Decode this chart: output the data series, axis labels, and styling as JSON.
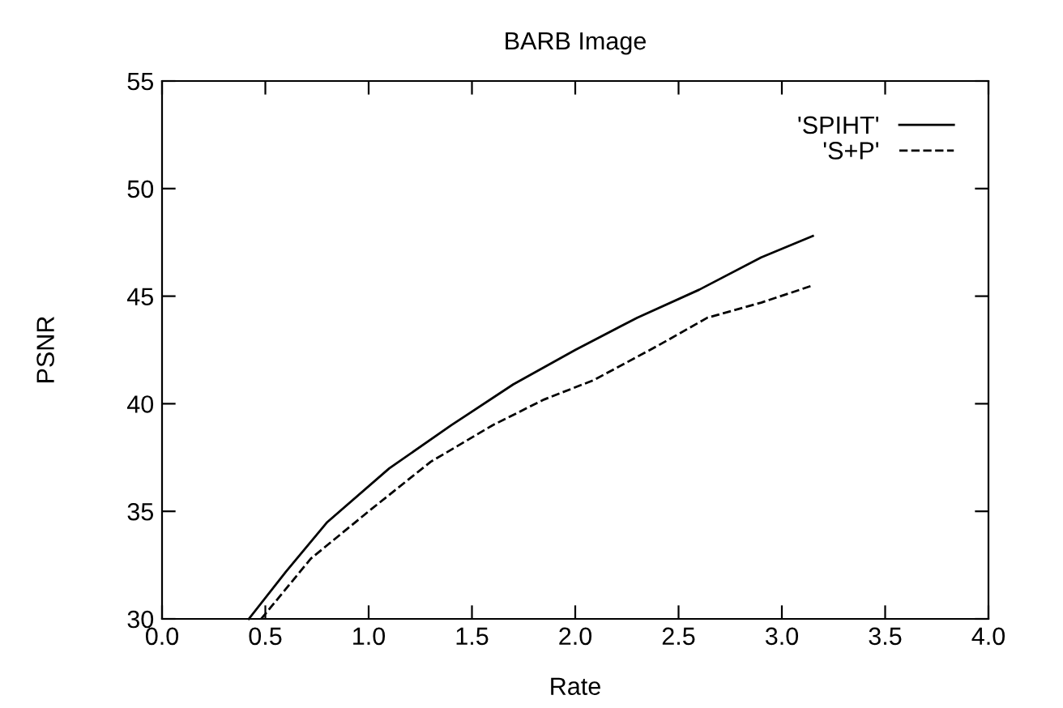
{
  "chart_data": {
    "type": "line",
    "title": "BARB Image",
    "xlabel": "Rate",
    "ylabel": "PSNR",
    "series": [
      {
        "name": "'SPIHT'",
        "color": "#000000",
        "line_style": "solid",
        "x": [
          0.42,
          0.6,
          0.8,
          1.1,
          1.4,
          1.7,
          2.0,
          2.3,
          2.6,
          2.9,
          3.15
        ],
        "values": [
          30,
          32.2,
          34.5,
          37,
          39,
          40.9,
          42.5,
          44,
          45.3,
          46.8,
          47.8
        ]
      },
      {
        "name": "'S+P'",
        "color": "#000000",
        "line_style": "dashed",
        "x": [
          0.48,
          0.72,
          1.0,
          1.3,
          1.6,
          1.85,
          2.09,
          2.4,
          2.64,
          2.9,
          3.15
        ],
        "values": [
          30,
          32.8,
          35,
          37.3,
          39,
          40.2,
          41.1,
          42.7,
          44.0,
          44.7,
          45.5
        ]
      }
    ],
    "xlim": [
      0,
      4
    ],
    "xticks": [
      {
        "value": 0,
        "label": "0.0"
      },
      {
        "value": 0.5,
        "label": "0.5"
      },
      {
        "value": 1,
        "label": "1.0"
      },
      {
        "value": 1.5,
        "label": "1.5"
      },
      {
        "value": 2,
        "label": "2.0"
      },
      {
        "value": 2.5,
        "label": "2.5"
      },
      {
        "value": 3,
        "label": "3.0"
      },
      {
        "value": 3.5,
        "label": "3.5"
      },
      {
        "value": 4,
        "label": "4.0"
      }
    ],
    "ylim": [
      30,
      55
    ],
    "yticks": [
      30,
      35,
      40,
      45,
      50,
      55
    ],
    "grid": false,
    "legend": "top right",
    "marker": "none"
  }
}
